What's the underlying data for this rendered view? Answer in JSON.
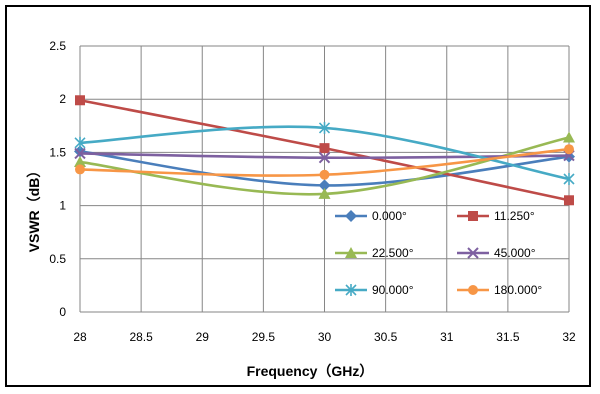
{
  "chart_data": {
    "type": "line",
    "xlabel": "Frequency（GHz）",
    "ylabel": "VSWR（dB）",
    "xlim": [
      28,
      32
    ],
    "ylim": [
      0,
      2.5
    ],
    "xticks": [
      "28",
      "28.5",
      "29",
      "29.5",
      "30",
      "30.5",
      "31",
      "31.5",
      "32"
    ],
    "yticks": [
      "0",
      "0.5",
      "1",
      "1.5",
      "2",
      "2.5"
    ],
    "grid": true,
    "legend_placement": "lower-right-inside",
    "x": [
      28,
      30,
      32
    ],
    "series": [
      {
        "name": "0.000°",
        "values": [
          1.51,
          1.19,
          1.46
        ],
        "color": "#4a7ebb",
        "marker": "diamond"
      },
      {
        "name": "11.250°",
        "values": [
          1.99,
          1.54,
          1.05
        ],
        "color": "#be4b48",
        "marker": "square"
      },
      {
        "name": "22.500°",
        "values": [
          1.41,
          1.11,
          1.64
        ],
        "color": "#98b954",
        "marker": "triangle"
      },
      {
        "name": "45.000°",
        "values": [
          1.49,
          1.45,
          1.47
        ],
        "color": "#7d60a0",
        "marker": "x"
      },
      {
        "name": "90.000°",
        "values": [
          1.59,
          1.73,
          1.25
        ],
        "color": "#46aac5",
        "marker": "star"
      },
      {
        "name": "180.000°",
        "values": [
          1.34,
          1.29,
          1.53
        ],
        "color": "#f79646",
        "marker": "circle"
      }
    ]
  }
}
